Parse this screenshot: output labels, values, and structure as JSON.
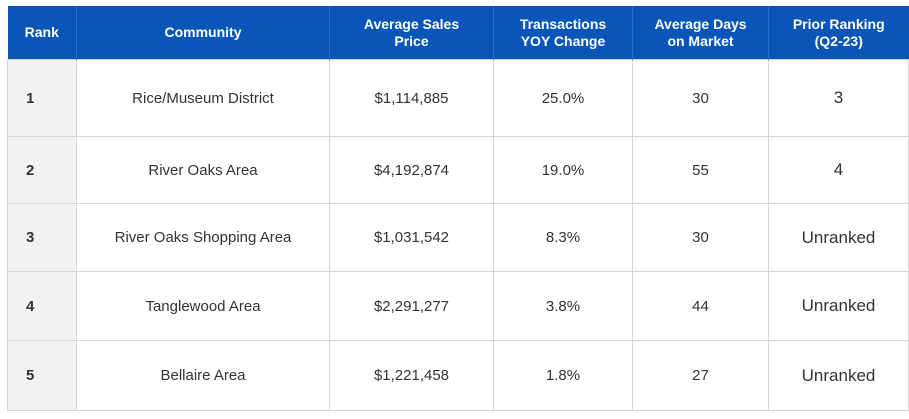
{
  "table": {
    "headers": [
      "Rank",
      "Community",
      "Average Sales Price",
      "Transactions YOY Change",
      "Average Days on Market",
      "Prior Ranking (Q2-23)"
    ],
    "header_lines": [
      [
        "Rank"
      ],
      [
        "Community"
      ],
      [
        "Average Sales",
        "Price"
      ],
      [
        "Transactions",
        "YOY Change"
      ],
      [
        "Average Days",
        "on Market"
      ],
      [
        "Prior Ranking",
        "(Q2-23)"
      ]
    ],
    "header_color": "#0a56b8",
    "rows": [
      {
        "rank": "1",
        "community": "Rice/Museum District",
        "price": "$1,114,885",
        "yoy": "25.0%",
        "days": "30",
        "prior": "3"
      },
      {
        "rank": "2",
        "community": "River Oaks Area",
        "price": "$4,192,874",
        "yoy": "19.0%",
        "days": "55",
        "prior": "4"
      },
      {
        "rank": "3",
        "community": "River Oaks Shopping Area",
        "price": "$1,031,542",
        "yoy": "8.3%",
        "days": "30",
        "prior": "Unranked"
      },
      {
        "rank": "4",
        "community": "Tanglewood Area",
        "price": "$2,291,277",
        "yoy": "3.8%",
        "days": "44",
        "prior": "Unranked"
      },
      {
        "rank": "5",
        "community": "Bellaire Area",
        "price": "$1,221,458",
        "yoy": "1.8%",
        "days": "27",
        "prior": "Unranked"
      }
    ]
  }
}
